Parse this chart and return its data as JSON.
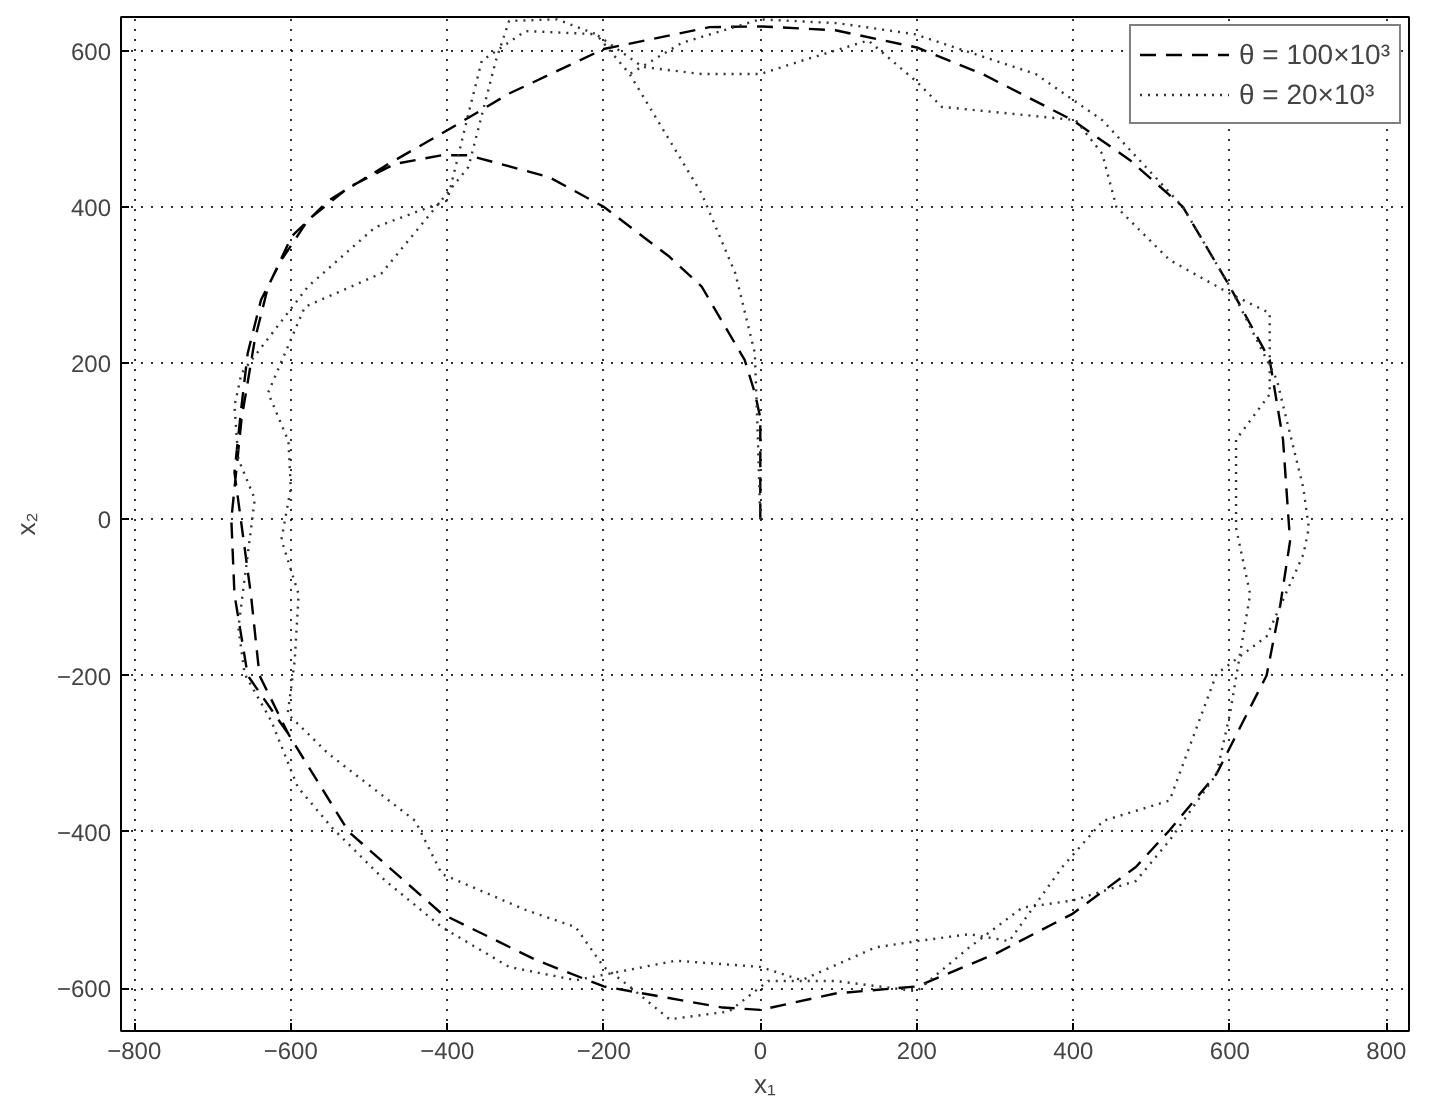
{
  "chart_data": {
    "type": "line",
    "xlabel": "x₁",
    "ylabel": "x₂",
    "xlim": [
      -817,
      829
    ],
    "ylim": [
      -655,
      643
    ],
    "xticks": [
      {
        "value": -800,
        "label": "−800"
      },
      {
        "value": -600,
        "label": "−600"
      },
      {
        "value": -400,
        "label": "−400"
      },
      {
        "value": -200,
        "label": "−200"
      },
      0,
      200,
      400,
      600,
      800
    ],
    "yticks": [
      {
        "value": -600,
        "label": "−600"
      },
      {
        "value": -400,
        "label": "−400"
      },
      {
        "value": -200,
        "label": "−200"
      },
      0,
      200,
      400,
      600
    ],
    "grid": true,
    "legend": "top right",
    "marker": "none",
    "series": [
      {
        "name": "θ = 100×10³",
        "color": "#000000",
        "line_style": "dashed",
        "x": [
          0,
          0,
          -7,
          -20,
          -75,
          -116,
          -200,
          -270,
          -373,
          -407,
          -467,
          -526,
          -578,
          -612,
          -638,
          -655,
          -663,
          -672,
          -651,
          -640,
          -603,
          -526,
          -407,
          -287,
          -200,
          -48,
          0,
          96,
          200,
          301,
          399,
          480,
          523,
          583,
          626,
          647,
          664,
          677,
          668,
          651,
          600,
          540,
          472,
          399,
          284,
          200,
          96,
          0,
          -65,
          -200,
          -321,
          -400,
          -475,
          -552,
          -599,
          -629,
          -646,
          -663,
          -676,
          -672,
          -655,
          -603
        ],
        "values": [
          0,
          130,
          162,
          204,
          298,
          336,
          400,
          438,
          466,
          466,
          455,
          425,
          383,
          332,
          281,
          213,
          145,
          60,
          -96,
          -200,
          -275,
          -400,
          -505,
          -564,
          -598,
          -625,
          -628,
          -607,
          -598,
          -556,
          -505,
          -445,
          -398,
          -326,
          -241,
          -200,
          -113,
          -28,
          102,
          204,
          298,
          400,
          460,
          511,
          570,
          604,
          626,
          631,
          630,
          602,
          545,
          498,
          455,
          408,
          362,
          298,
          230,
          128,
          0,
          -96,
          -200,
          -275
        ]
      },
      {
        "name": "θ = 20×10³",
        "color": "#333333",
        "line_style": "dotted",
        "x": [
          0,
          -3,
          -7,
          -32,
          -75,
          -167,
          -210,
          -260,
          -321,
          -338,
          -373,
          -407,
          -484,
          -582,
          -629,
          -603,
          -600,
          -612,
          -590,
          -595,
          -604,
          -552,
          -441,
          -407,
          -300,
          -236,
          -200,
          -167,
          -116,
          -40,
          10,
          96,
          200,
          267,
          335,
          399,
          480,
          523,
          583,
          600,
          626,
          608,
          608,
          651,
          651,
          600,
          523,
          455,
          437,
          403,
          232,
          200,
          138,
          53,
          0,
          -75,
          -150,
          -210,
          -300,
          -356,
          -373,
          -400,
          -492,
          -578,
          -663,
          -672,
          -667,
          -646,
          -667,
          -659,
          -625,
          -591,
          -548,
          -480,
          -407,
          -321,
          -236,
          -108,
          0,
          53,
          147,
          200,
          267,
          318,
          386,
          438,
          523,
          583,
          647,
          694,
          701,
          694,
          660,
          600,
          540,
          437,
          352,
          197,
          100,
          0,
          -100,
          -167
        ],
        "values": [
          0,
          100,
          213,
          315,
          417,
          570,
          621,
          640,
          638,
          587,
          451,
          409,
          315,
          272,
          162,
          100,
          40,
          -26,
          -96,
          -181,
          -249,
          -300,
          -386,
          -454,
          -500,
          -522,
          -573,
          -598,
          -640,
          -630,
          -591,
          -591,
          -604,
          -548,
          -497,
          -488,
          -463,
          -411,
          -326,
          -250,
          -96,
          -11,
          102,
          160,
          264,
          289,
          332,
          400,
          468,
          511,
          528,
          560,
          613,
          587,
          570,
          570,
          579,
          621,
          625,
          587,
          519,
          408,
          374,
          298,
          187,
          145,
          77,
          26,
          -139,
          -198,
          -258,
          -343,
          -394,
          -462,
          -522,
          -573,
          -590,
          -565,
          -573,
          -590,
          -548,
          -540,
          -531,
          -540,
          -445,
          -386,
          -360,
          -198,
          -150,
          -45,
          -11,
          40,
          179,
          298,
          400,
          511,
          570,
          621,
          635,
          640,
          610,
          570
        ]
      }
    ]
  }
}
